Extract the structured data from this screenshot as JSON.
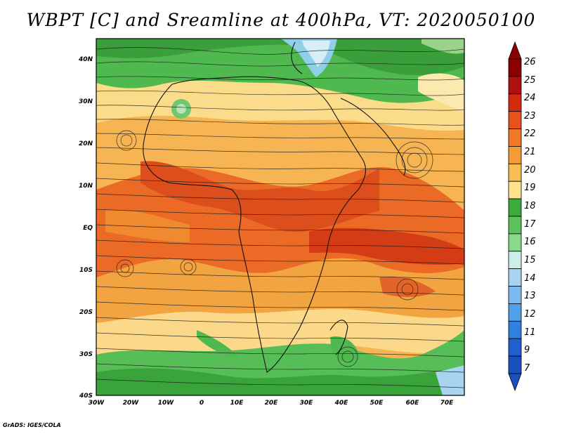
{
  "title": "WBPT [C] and Sreamline at 400hPa, VT: 2020050100",
  "credit": "GrADS: IGES/COLA",
  "map": {
    "lat_labels": [
      "40N",
      "30N",
      "20N",
      "10N",
      "EQ",
      "10S",
      "20S",
      "30S",
      "40S"
    ],
    "lon_labels": [
      "30W",
      "20W",
      "10W",
      "0",
      "10E",
      "20E",
      "30E",
      "40E",
      "50E",
      "60E",
      "70E"
    ],
    "lat_range": [
      -40,
      45
    ],
    "lon_range": [
      -30,
      77
    ]
  },
  "colorbar": {
    "levels": [
      "26",
      "25",
      "24",
      "23",
      "22",
      "21",
      "20",
      "19",
      "18",
      "17",
      "16",
      "15",
      "14",
      "13",
      "12",
      "11",
      "9",
      "7"
    ],
    "colors": [
      "#8b0000",
      "#b01010",
      "#d42a10",
      "#e8501e",
      "#f07a2a",
      "#f39b35",
      "#f7be55",
      "#fde38c",
      "#3daa3d",
      "#5cc25c",
      "#8ad98a",
      "#c9efe8",
      "#a8d4f0",
      "#7dbbee",
      "#539fe8",
      "#3280de",
      "#1f5fd0",
      "#1a4fc0"
    ]
  }
}
